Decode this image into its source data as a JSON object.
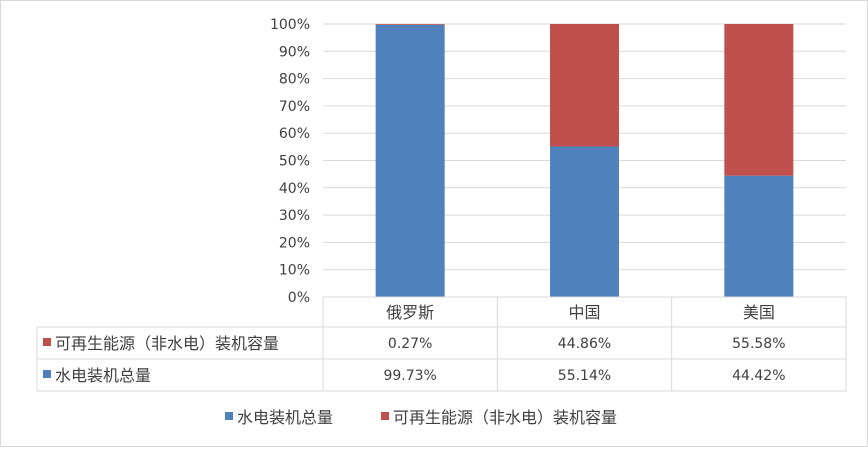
{
  "chart_data": {
    "type": "bar",
    "stacked": true,
    "categories": [
      "俄罗斯",
      "中国",
      "美国"
    ],
    "series": [
      {
        "name": "可再生能源（非水电）装机容量",
        "values": [
          0.27,
          44.86,
          55.58
        ],
        "labels": [
          "0.27%",
          "44.86%",
          "55.58%"
        ],
        "color": "#c0504d"
      },
      {
        "name": "水电装机总量",
        "values": [
          99.73,
          55.14,
          44.42
        ],
        "labels": [
          "99.73%",
          "55.14%",
          "44.42%"
        ],
        "color": "#4f81bd"
      }
    ],
    "legend_order": [
      1,
      0
    ],
    "ylim": [
      0,
      100
    ],
    "yticks": [
      "0%",
      "10%",
      "20%",
      "30%",
      "40%",
      "50%",
      "60%",
      "70%",
      "80%",
      "90%",
      "100%"
    ],
    "grid": true,
    "data_table": true,
    "legend_position": "bottom"
  },
  "colors": {
    "grid": "#d9d9d9",
    "text": "#404040"
  }
}
